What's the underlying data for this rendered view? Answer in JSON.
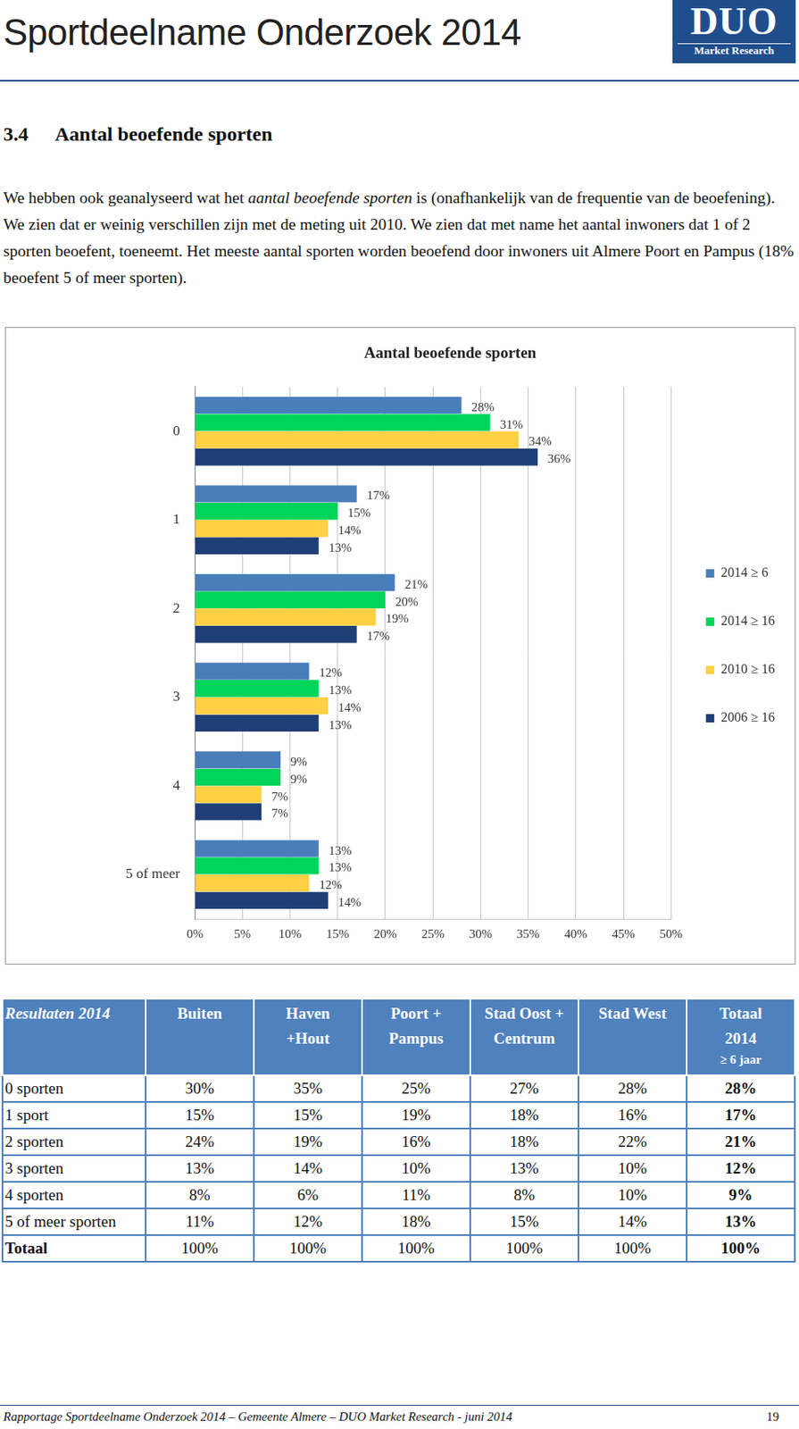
{
  "header": {
    "title": "Sportdeelname Onderzoek 2014",
    "logo": [
      "DUO",
      "Market Research"
    ]
  },
  "section": {
    "number": "3.4",
    "title": "Aantal beoefende sporten"
  },
  "paragraph": [
    "We hebben ook geanalyseerd wat het ",
    "aantal beoefende sporten",
    " is (onafhankelijk van de frequentie van de beoefening). We zien dat er weinig verschillen zijn met de meting uit 2010. We zien dat met name het aantal inwoners dat 1 of 2 sporten beoefent, toeneemt. Het meeste aantal sporten worden beoefend door inwoners uit Almere Poort en Pampus (18% beoefent 5 of meer sporten)."
  ],
  "chart_data": {
    "type": "bar",
    "title": "Aantal beoefende sporten",
    "orientation": "horizontal",
    "categories": [
      "0",
      "1",
      "2",
      "3",
      "4",
      "5 of meer"
    ],
    "series": [
      {
        "name": "2014 ≥ 6",
        "color": "#4a7ebb",
        "values": [
          28,
          17,
          21,
          12,
          9,
          13
        ],
        "value_labels": [
          "28%",
          "17%",
          "21%",
          "12%",
          "9%",
          "13%"
        ]
      },
      {
        "name": "2014 ≥ 16",
        "color": "#00d45a",
        "values": [
          31,
          15,
          20,
          13,
          9,
          13
        ],
        "value_labels": [
          "31%",
          "15%",
          "20%",
          "13%",
          "9%",
          "13%"
        ]
      },
      {
        "name": "2010 ≥ 16",
        "color": "#ffd044",
        "values": [
          34,
          14,
          19,
          14,
          7,
          12
        ],
        "value_labels": [
          "34%",
          "14%",
          "19%",
          "14%",
          "7%",
          "12%"
        ]
      },
      {
        "name": "2006 ≥ 16",
        "color": "#1f3f77",
        "values": [
          36,
          13,
          17,
          13,
          7,
          14
        ],
        "value_labels": [
          "36%",
          "13%",
          "17%",
          "13%",
          "7%",
          "14%"
        ]
      }
    ],
    "xlim": [
      0,
      50
    ],
    "xticks": [
      {
        "value": 0,
        "label": "0%"
      },
      {
        "value": 5,
        "label": "5%"
      },
      {
        "value": 10,
        "label": "10%"
      },
      {
        "value": 15,
        "label": "15%"
      },
      {
        "value": 20,
        "label": "20%"
      },
      {
        "value": 25,
        "label": "25%"
      },
      {
        "value": 30,
        "label": "30%"
      },
      {
        "value": 35,
        "label": "35%"
      },
      {
        "value": 40,
        "label": "40%"
      },
      {
        "value": 45,
        "label": "45%"
      },
      {
        "value": 50,
        "label": "50%"
      }
    ],
    "grid": true,
    "legend": "right",
    "data_labels": true
  },
  "table": {
    "header": [
      [
        "Resultaten 2014"
      ],
      [
        "Buiten"
      ],
      [
        "Haven",
        "+Hout"
      ],
      [
        "Poort +",
        "Pampus"
      ],
      [
        "Stad Oost +",
        "Centrum"
      ],
      [
        "Stad West"
      ],
      [
        "Totaal",
        "2014",
        "≥ 6 jaar"
      ]
    ],
    "rows": [
      [
        "0 sporten",
        "30%",
        "35%",
        "25%",
        "27%",
        "28%",
        "28%"
      ],
      [
        "1 sport",
        "15%",
        "15%",
        "19%",
        "18%",
        "16%",
        "17%"
      ],
      [
        "2 sporten",
        "24%",
        "19%",
        "16%",
        "18%",
        "22%",
        "21%"
      ],
      [
        "3 sporten",
        "13%",
        "14%",
        "10%",
        "13%",
        "10%",
        "12%"
      ],
      [
        "4 sporten",
        "8%",
        "6%",
        "11%",
        "8%",
        "10%",
        "9%"
      ],
      [
        "5 of meer sporten",
        "11%",
        "12%",
        "18%",
        "15%",
        "14%",
        "13%"
      ],
      [
        "Totaal",
        "100%",
        "100%",
        "100%",
        "100%",
        "100%",
        "100%"
      ]
    ]
  },
  "footer": {
    "text": "Rapportage Sportdeelname Onderzoek 2014 – Gemeente Almere – DUO Market Research - juni 2014",
    "page": "19"
  }
}
